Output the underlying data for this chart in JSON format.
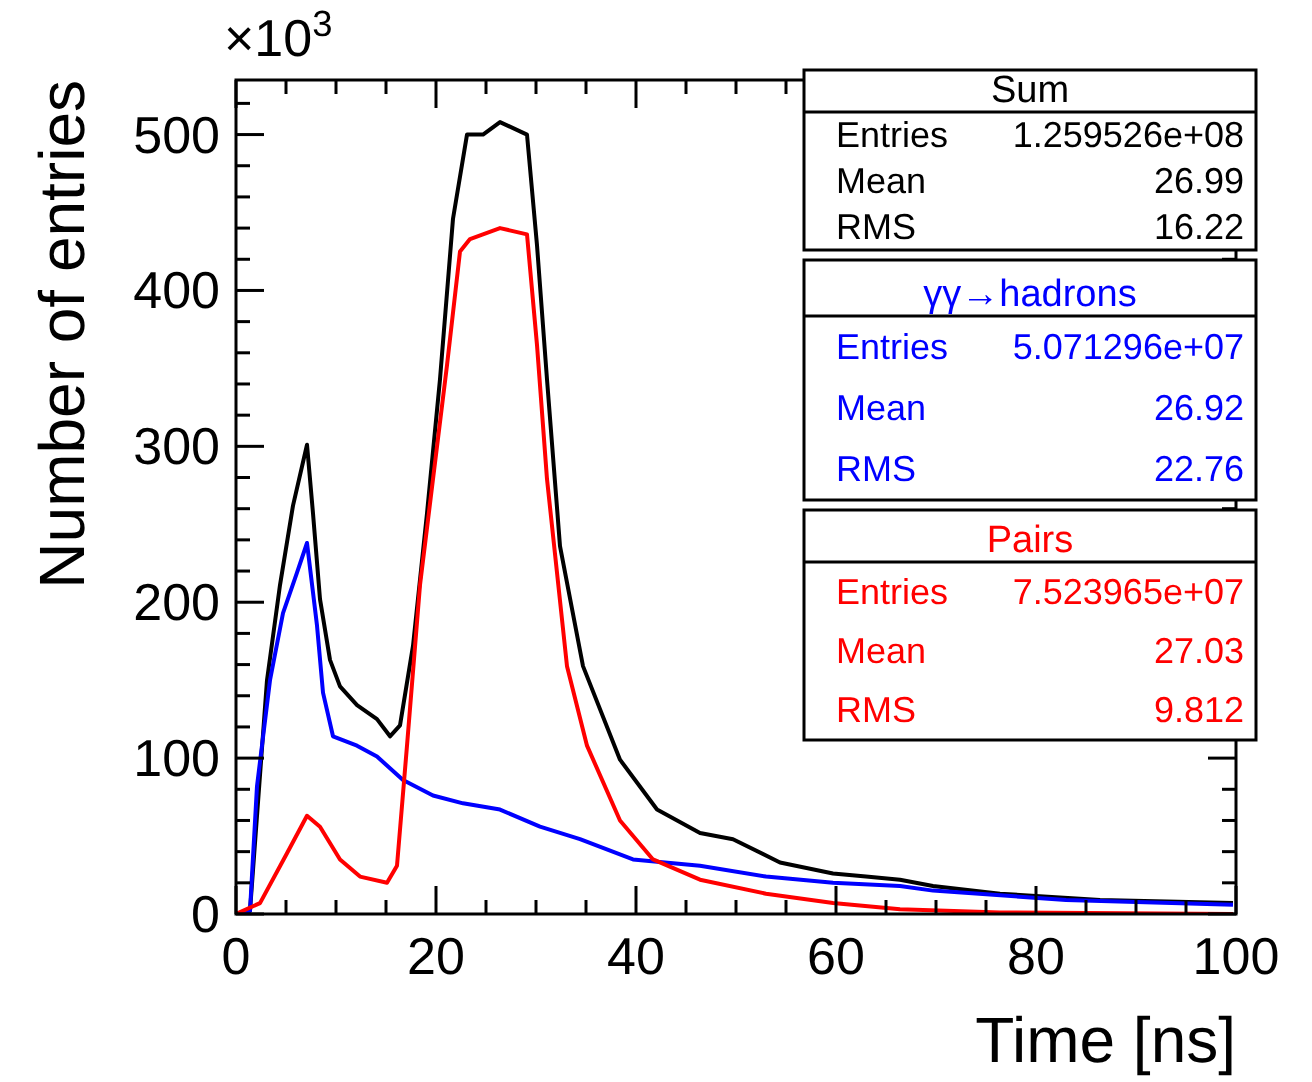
{
  "chart_data": {
    "type": "line",
    "xlabel": "Time [ns]",
    "ylabel": "Number of entries",
    "annotations": [
      "×10$^{3}$",
      "Entries 1.259526e+08",
      "Mean 26.99",
      "RMS 16.22",
      "Entries 5.071296e+07",
      "Mean 26.92",
      "RMS 22.76",
      "Entries 7.523965e+07",
      "Mean 27.03",
      "RMS 9.812"
    ],
    "xlim": [
      0,
      100
    ],
    "ylim": [
      0,
      535
    ],
    "xticks": [
      0,
      {
        "value": 5,
        "label": null
      },
      {
        "value": 10,
        "label": null
      },
      {
        "value": 15,
        "label": null
      },
      20,
      {
        "value": 25,
        "label": null
      },
      {
        "value": 30,
        "label": null
      },
      {
        "value": 35,
        "label": null
      },
      40,
      {
        "value": 45,
        "label": null
      },
      {
        "value": 50,
        "label": null
      },
      {
        "value": 55,
        "label": null
      },
      60,
      {
        "value": 65,
        "label": null
      },
      {
        "value": 70,
        "label": null
      },
      {
        "value": 75,
        "label": null
      },
      80,
      {
        "value": 85,
        "label": null
      },
      {
        "value": 90,
        "label": null
      },
      {
        "value": 95,
        "label": null
      },
      100
    ],
    "yticks": [
      0,
      {
        "value": 20,
        "label": null
      },
      {
        "value": 40,
        "label": null
      },
      {
        "value": 60,
        "label": null
      },
      {
        "value": 80,
        "label": null
      },
      100,
      {
        "value": 120,
        "label": null
      },
      {
        "value": 140,
        "label": null
      },
      {
        "value": 160,
        "label": null
      },
      {
        "value": 180,
        "label": null
      },
      200,
      {
        "value": 220,
        "label": null
      },
      {
        "value": 240,
        "label": null
      },
      {
        "value": 260,
        "label": null
      },
      {
        "value": 280,
        "label": null
      },
      300,
      {
        "value": 320,
        "label": null
      },
      {
        "value": 340,
        "label": null
      },
      {
        "value": 360,
        "label": null
      },
      {
        "value": 380,
        "label": null
      },
      400,
      {
        "value": 420,
        "label": null
      },
      {
        "value": 440,
        "label": null
      },
      {
        "value": 460,
        "label": null
      },
      {
        "value": 480,
        "label": null
      },
      500,
      {
        "value": 520,
        "label": null
      }
    ],
    "grid": false,
    "series": [
      {
        "name": "Sum",
        "color": "#000000",
        "x": [
          0,
          1.4,
          3.1,
          4.4,
          5.7,
          7.1,
          7.7,
          8.4,
          9.4,
          10.4,
          12.1,
          14.1,
          15.4,
          16.4,
          17.7,
          19.1,
          20.4,
          21.7,
          23.1,
          24.7,
          26.4,
          29.1,
          30.1,
          31.1,
          32.4,
          34.7,
          38.4,
          42.1,
          46.4,
          49.7,
          54.4,
          59.7,
          63,
          66.4,
          69.7,
          76.4,
          86.4,
          99.7
        ],
        "values": [
          0,
          2,
          150,
          211,
          262,
          301,
          257,
          202,
          163,
          146,
          134,
          125,
          114,
          121,
          172,
          257,
          343,
          446,
          500,
          500,
          508,
          500,
          429,
          343,
          236,
          159,
          99,
          67,
          52,
          48,
          33,
          26,
          24,
          22,
          18,
          13,
          9,
          7
        ]
      },
      {
        "name": "γγ→hadrons",
        "color": "#0000ff",
        "x": [
          0,
          1.4,
          2.1,
          3.4,
          4.7,
          6.1,
          7.1,
          8.1,
          8.7,
          9.7,
          12.1,
          14.1,
          16.7,
          19.7,
          22.7,
          26.4,
          30.4,
          34.4,
          39.7,
          46.4,
          53,
          59.7,
          66.4,
          69.7,
          83,
          99.7
        ],
        "values": [
          0,
          2,
          82,
          150,
          193,
          219,
          238,
          185,
          142,
          114,
          108,
          101,
          86,
          76,
          71,
          67,
          56,
          48,
          35,
          31,
          24,
          20,
          18,
          15,
          9,
          6
        ]
      },
      {
        "name": "Pairs",
        "color": "#ff0000",
        "x": [
          0,
          2.4,
          5.1,
          7.1,
          8.4,
          10.4,
          12.4,
          15.1,
          16.1,
          17.1,
          18.4,
          19.7,
          21.1,
          22.4,
          23.4,
          26.4,
          29.1,
          30.1,
          31.1,
          33.1,
          35.1,
          38.4,
          41.7,
          46.4,
          53,
          59.7,
          66.4,
          76.4,
          99.7
        ],
        "values": [
          0,
          7,
          39,
          63,
          56,
          35,
          24,
          20,
          31,
          108,
          211,
          279,
          352,
          425,
          433,
          440,
          436,
          365,
          279,
          159,
          108,
          60,
          35,
          22,
          13,
          7,
          3,
          1,
          0
        ]
      }
    ]
  }
}
